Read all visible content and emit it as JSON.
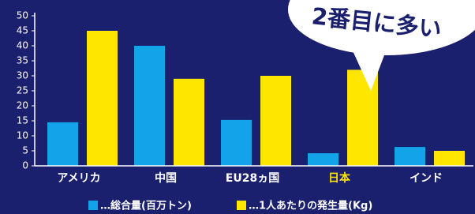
{
  "chart_data": {
    "type": "bar",
    "categories": [
      "アメリカ",
      "中国",
      "EU28ヵ国",
      "日本",
      "インド"
    ],
    "category_label_colors": [
      "#ffffff",
      "#ffffff",
      "#ffffff",
      "#ffe600",
      "#ffffff"
    ],
    "series": [
      {
        "name": "…総合量(百万トン)",
        "color": "#12a3e8",
        "values": [
          14.5,
          40,
          15.3,
          4.2,
          6.3
        ]
      },
      {
        "name": "…1人あたりの発生量(Kg)",
        "color": "#ffe600",
        "values": [
          45,
          29,
          30,
          32,
          5
        ]
      }
    ],
    "ylim": [
      0,
      50
    ],
    "yticks": [
      0,
      5,
      10,
      15,
      20,
      25,
      30,
      35,
      40,
      45,
      50
    ],
    "annotation": "2番目に多い"
  }
}
